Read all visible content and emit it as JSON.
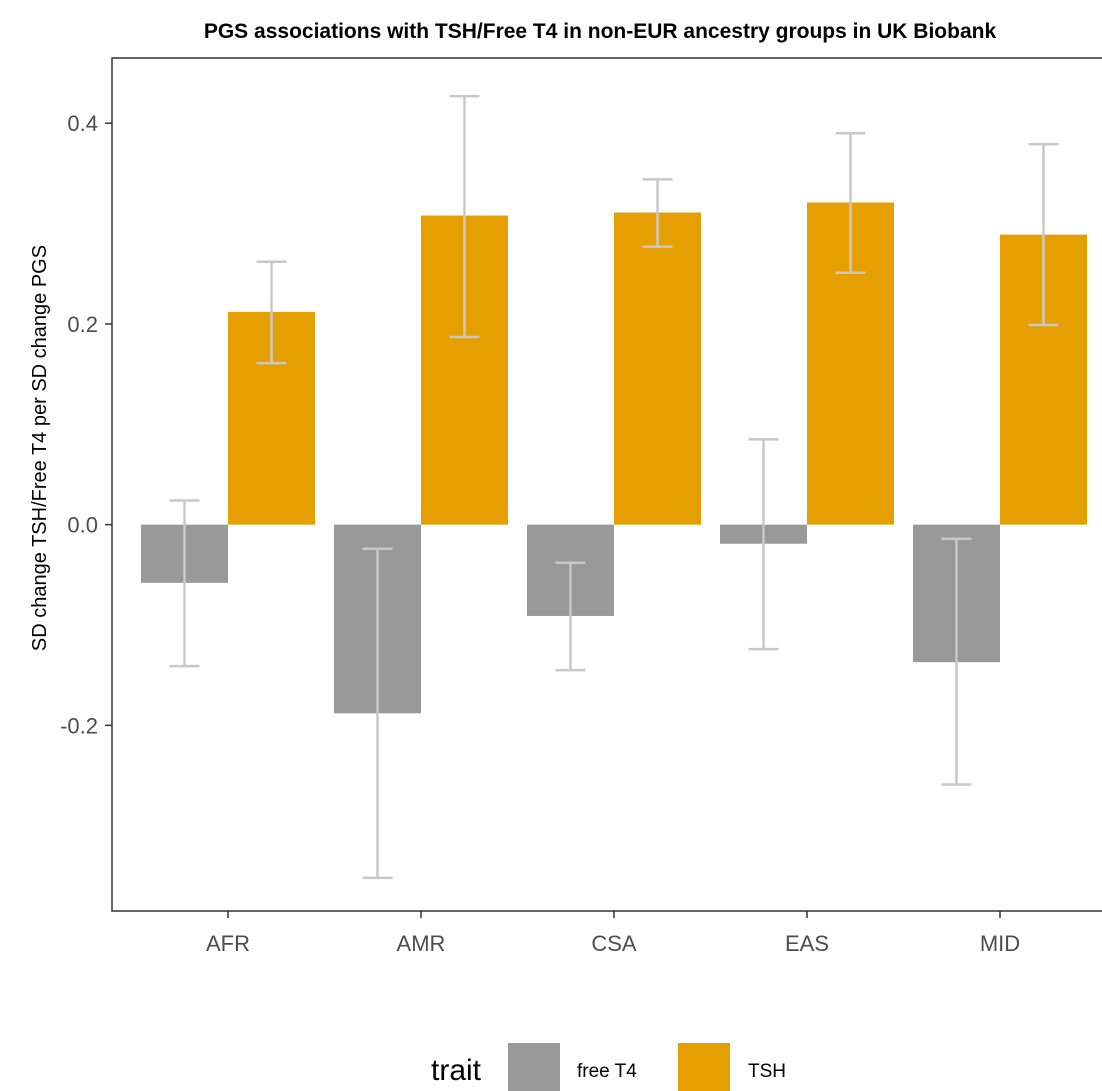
{
  "chart_data": {
    "type": "bar",
    "title": "PGS associations with TSH/Free T4 in non-EUR ancestry groups in UK Biobank",
    "xlabel": "",
    "ylabel": "SD change TSH/Free T4 per SD change PGS",
    "ylim": [
      -0.385,
      0.465
    ],
    "yticks": [
      0.4,
      0.2,
      0.0,
      -0.2
    ],
    "ytick_labels": [
      "0.4",
      "0.2",
      "0.0",
      "-0.2"
    ],
    "categories": [
      "AFR",
      "AMR",
      "CSA",
      "EAS",
      "MID"
    ],
    "grid": false,
    "legend": {
      "title": "trait",
      "placement": "bottom"
    },
    "series": [
      {
        "name": "free T4",
        "color": "#999999",
        "values": [
          -0.058,
          -0.188,
          -0.091,
          -0.019,
          -0.137
        ],
        "error_low": [
          -0.141,
          -0.352,
          -0.145,
          -0.124,
          -0.259
        ],
        "error_high": [
          0.024,
          -0.024,
          -0.038,
          0.085,
          -0.014
        ]
      },
      {
        "name": "TSH",
        "color": "#E69F00",
        "values": [
          0.212,
          0.308,
          0.311,
          0.321,
          0.289
        ],
        "error_low": [
          0.161,
          0.187,
          0.277,
          0.251,
          0.199
        ],
        "error_high": [
          0.262,
          0.427,
          0.344,
          0.39,
          0.379
        ]
      }
    ],
    "errorbar_color": "#c8c8c8"
  }
}
